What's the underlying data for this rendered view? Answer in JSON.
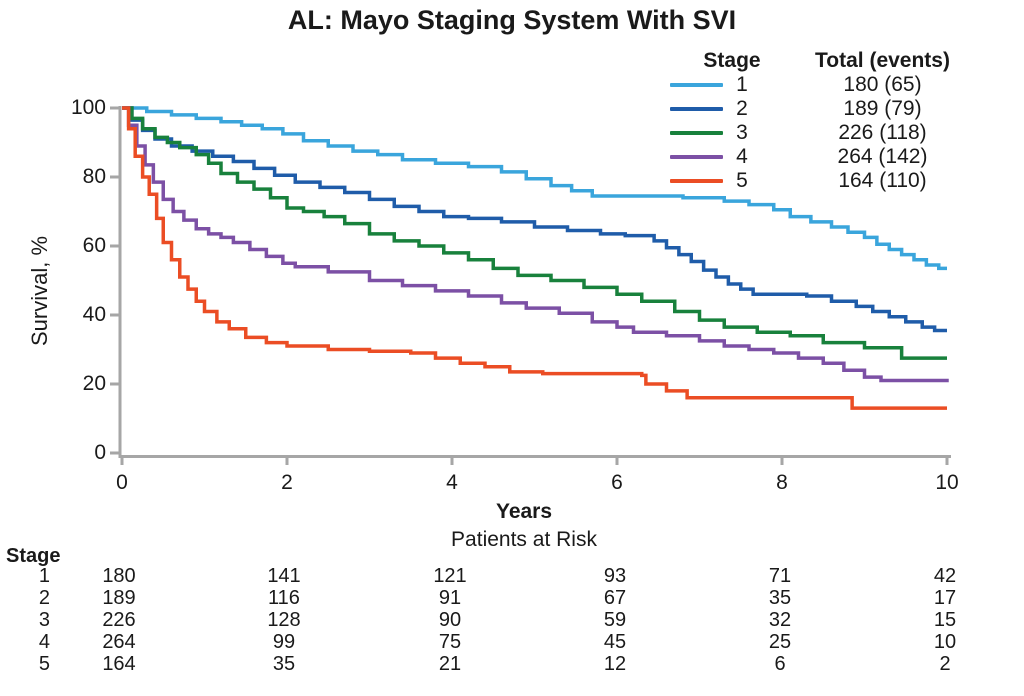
{
  "title": "AL: Mayo Staging System With SVI",
  "axis": {
    "color": "#a6a6a6",
    "text_color": "#1a1a1a"
  },
  "chart_data": {
    "type": "line",
    "subtype": "kaplan-meier-step-survival",
    "title": "AL: Mayo Staging System With SVI",
    "xlabel": "Years",
    "ylabel": "Survival, %",
    "xlim": [
      0,
      10
    ],
    "ylim": [
      0,
      100
    ],
    "x_ticks": [
      0,
      2,
      4,
      6,
      8,
      10
    ],
    "y_ticks": [
      100,
      80,
      60,
      40,
      20,
      0
    ],
    "grid": false,
    "legend": {
      "position": "top-right",
      "col1_header": "Stage",
      "col2_header": "Total (events)"
    },
    "series": [
      {
        "name": "1",
        "total": 180,
        "events": 65,
        "total_events_label": "180 (65)",
        "color": "#3aa5dc",
        "points": [
          [
            0,
            100
          ],
          [
            0.3,
            99
          ],
          [
            0.6,
            98
          ],
          [
            0.9,
            97
          ],
          [
            1.2,
            96
          ],
          [
            1.45,
            95
          ],
          [
            1.7,
            94
          ],
          [
            1.95,
            92.5
          ],
          [
            2.2,
            90.5
          ],
          [
            2.5,
            89
          ],
          [
            2.8,
            87.5
          ],
          [
            3.1,
            86.5
          ],
          [
            3.4,
            85
          ],
          [
            3.8,
            84
          ],
          [
            4.2,
            83
          ],
          [
            4.6,
            81.5
          ],
          [
            4.9,
            79.5
          ],
          [
            5.2,
            77.5
          ],
          [
            5.45,
            76
          ],
          [
            5.7,
            74.5
          ],
          [
            6.3,
            74.5
          ],
          [
            6.8,
            74
          ],
          [
            7.3,
            73
          ],
          [
            7.6,
            72
          ],
          [
            7.9,
            70.5
          ],
          [
            8.1,
            68.5
          ],
          [
            8.35,
            67
          ],
          [
            8.6,
            65.5
          ],
          [
            8.8,
            64
          ],
          [
            9.0,
            62.5
          ],
          [
            9.15,
            60.5
          ],
          [
            9.3,
            59
          ],
          [
            9.45,
            57.5
          ],
          [
            9.6,
            56
          ],
          [
            9.75,
            54.5
          ],
          [
            9.9,
            53.5
          ],
          [
            10,
            53.5
          ]
        ]
      },
      {
        "name": "2",
        "total": 189,
        "events": 79,
        "total_events_label": "189 (79)",
        "color": "#1f5ca9",
        "points": [
          [
            0,
            100
          ],
          [
            0.12,
            96.5
          ],
          [
            0.25,
            93.5
          ],
          [
            0.4,
            91
          ],
          [
            0.6,
            89
          ],
          [
            0.85,
            87.5
          ],
          [
            1.1,
            86
          ],
          [
            1.35,
            84.5
          ],
          [
            1.6,
            82.5
          ],
          [
            1.85,
            80.5
          ],
          [
            2.1,
            78.5
          ],
          [
            2.4,
            77
          ],
          [
            2.7,
            75.5
          ],
          [
            3.0,
            73.5
          ],
          [
            3.3,
            71.5
          ],
          [
            3.6,
            70
          ],
          [
            3.9,
            68.5
          ],
          [
            4.2,
            68
          ],
          [
            4.6,
            67
          ],
          [
            5.0,
            65.5
          ],
          [
            5.4,
            64.5
          ],
          [
            5.8,
            63.5
          ],
          [
            6.1,
            63
          ],
          [
            6.45,
            61.5
          ],
          [
            6.6,
            59.5
          ],
          [
            6.75,
            57.5
          ],
          [
            6.9,
            55.5
          ],
          [
            7.05,
            53
          ],
          [
            7.2,
            51
          ],
          [
            7.35,
            49
          ],
          [
            7.5,
            47.5
          ],
          [
            7.65,
            46
          ],
          [
            8.3,
            45.5
          ],
          [
            8.6,
            44
          ],
          [
            8.9,
            42.5
          ],
          [
            9.1,
            41
          ],
          [
            9.3,
            39.5
          ],
          [
            9.5,
            38
          ],
          [
            9.7,
            36.5
          ],
          [
            9.85,
            35.5
          ],
          [
            10,
            35.5
          ]
        ]
      },
      {
        "name": "3",
        "total": 226,
        "events": 118,
        "total_events_label": "226 (118)",
        "color": "#18813c",
        "points": [
          [
            0,
            100
          ],
          [
            0.12,
            97
          ],
          [
            0.25,
            94
          ],
          [
            0.4,
            91.5
          ],
          [
            0.55,
            90
          ],
          [
            0.7,
            88.5
          ],
          [
            0.9,
            86.5
          ],
          [
            1.05,
            84
          ],
          [
            1.2,
            81
          ],
          [
            1.4,
            78.5
          ],
          [
            1.6,
            76.5
          ],
          [
            1.8,
            74
          ],
          [
            2.0,
            71
          ],
          [
            2.2,
            70
          ],
          [
            2.45,
            68.5
          ],
          [
            2.7,
            66.5
          ],
          [
            3.0,
            63.5
          ],
          [
            3.3,
            61.5
          ],
          [
            3.6,
            60
          ],
          [
            3.9,
            58
          ],
          [
            4.2,
            56
          ],
          [
            4.5,
            53.5
          ],
          [
            4.8,
            51.5
          ],
          [
            5.2,
            50
          ],
          [
            5.6,
            48
          ],
          [
            6.0,
            46
          ],
          [
            6.3,
            44
          ],
          [
            6.7,
            41
          ],
          [
            7.0,
            38.5
          ],
          [
            7.3,
            36.5
          ],
          [
            7.7,
            35
          ],
          [
            8.1,
            34
          ],
          [
            8.5,
            32
          ],
          [
            9.0,
            30.5
          ],
          [
            9.45,
            27.5
          ],
          [
            10,
            27.5
          ]
        ]
      },
      {
        "name": "4",
        "total": 264,
        "events": 142,
        "total_events_label": "264 (142)",
        "color": "#7c50a5",
        "points": [
          [
            0,
            100
          ],
          [
            0.08,
            95
          ],
          [
            0.18,
            89
          ],
          [
            0.28,
            83.5
          ],
          [
            0.38,
            78.5
          ],
          [
            0.5,
            73.5
          ],
          [
            0.62,
            70
          ],
          [
            0.75,
            67.5
          ],
          [
            0.9,
            65
          ],
          [
            1.05,
            63.5
          ],
          [
            1.2,
            62.5
          ],
          [
            1.35,
            61
          ],
          [
            1.55,
            59
          ],
          [
            1.75,
            57
          ],
          [
            1.95,
            55
          ],
          [
            2.1,
            54
          ],
          [
            2.5,
            52.5
          ],
          [
            3.0,
            50
          ],
          [
            3.4,
            48.5
          ],
          [
            3.8,
            47
          ],
          [
            4.2,
            45.5
          ],
          [
            4.6,
            43.5
          ],
          [
            4.9,
            42
          ],
          [
            5.3,
            40.5
          ],
          [
            5.7,
            38
          ],
          [
            6.0,
            36.5
          ],
          [
            6.2,
            35
          ],
          [
            6.6,
            34
          ],
          [
            7.0,
            32.5
          ],
          [
            7.3,
            31
          ],
          [
            7.6,
            30
          ],
          [
            7.9,
            29
          ],
          [
            8.2,
            27.5
          ],
          [
            8.5,
            26
          ],
          [
            8.75,
            24
          ],
          [
            9.0,
            22
          ],
          [
            9.2,
            21
          ],
          [
            10,
            20.5
          ]
        ]
      },
      {
        "name": "5",
        "total": 164,
        "events": 110,
        "total_events_label": "164 (110)",
        "color": "#eb4d24",
        "points": [
          [
            0,
            100
          ],
          [
            0.08,
            94
          ],
          [
            0.16,
            86
          ],
          [
            0.25,
            80
          ],
          [
            0.33,
            75
          ],
          [
            0.42,
            68
          ],
          [
            0.5,
            61
          ],
          [
            0.6,
            56
          ],
          [
            0.7,
            51
          ],
          [
            0.8,
            47.5
          ],
          [
            0.9,
            44
          ],
          [
            1.0,
            41
          ],
          [
            1.15,
            38
          ],
          [
            1.3,
            36
          ],
          [
            1.5,
            33.5
          ],
          [
            1.75,
            32
          ],
          [
            2.0,
            31
          ],
          [
            2.5,
            30
          ],
          [
            3.0,
            29.5
          ],
          [
            3.5,
            29
          ],
          [
            3.8,
            27.5
          ],
          [
            4.1,
            26
          ],
          [
            4.4,
            25
          ],
          [
            4.7,
            23.5
          ],
          [
            5.1,
            23
          ],
          [
            6.3,
            22.5
          ],
          [
            6.35,
            20
          ],
          [
            6.6,
            18
          ],
          [
            6.85,
            16
          ],
          [
            8.85,
            13
          ],
          [
            10,
            13
          ]
        ]
      }
    ]
  },
  "risk_table": {
    "header": "Stage",
    "caption": "Patients at Risk",
    "time_points": [
      0,
      2,
      4,
      6,
      8,
      10
    ],
    "rows": [
      {
        "stage": "1",
        "values": [
          180,
          141,
          121,
          93,
          71,
          42
        ]
      },
      {
        "stage": "2",
        "values": [
          189,
          116,
          91,
          67,
          35,
          17
        ]
      },
      {
        "stage": "3",
        "values": [
          226,
          128,
          90,
          59,
          32,
          15
        ]
      },
      {
        "stage": "4",
        "values": [
          264,
          99,
          75,
          45,
          25,
          10
        ]
      },
      {
        "stage": "5",
        "values": [
          164,
          35,
          21,
          12,
          6,
          2
        ]
      }
    ]
  }
}
